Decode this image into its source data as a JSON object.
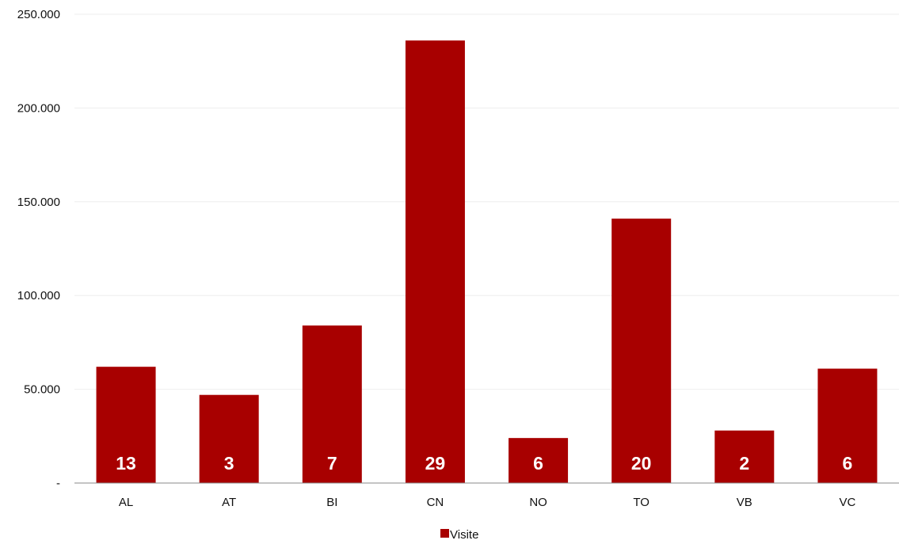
{
  "chart_data": {
    "type": "bar",
    "categories": [
      "AL",
      "AT",
      "BI",
      "CN",
      "NO",
      "TO",
      "VB",
      "VC"
    ],
    "series": [
      {
        "name": "Visite",
        "values": [
          62000,
          47000,
          84000,
          236000,
          24000,
          141000,
          28000,
          61000
        ]
      }
    ],
    "data_labels": [
      "13",
      "3",
      "7",
      "29",
      "6",
      "20",
      "2",
      "6"
    ],
    "ylim": [
      0,
      250000
    ],
    "y_ticks": [
      {
        "value": 0,
        "label": "-"
      },
      {
        "value": 50000,
        "label": "50.000"
      },
      {
        "value": 100000,
        "label": "100.000"
      },
      {
        "value": 150000,
        "label": "150.000"
      },
      {
        "value": 200000,
        "label": "200.000"
      },
      {
        "value": 250000,
        "label": "250.000"
      }
    ],
    "grid": true,
    "legend_position": "bottom",
    "bar_color": "#a80000",
    "grid_color": "#eeeeee",
    "axis_color": "#888888"
  }
}
